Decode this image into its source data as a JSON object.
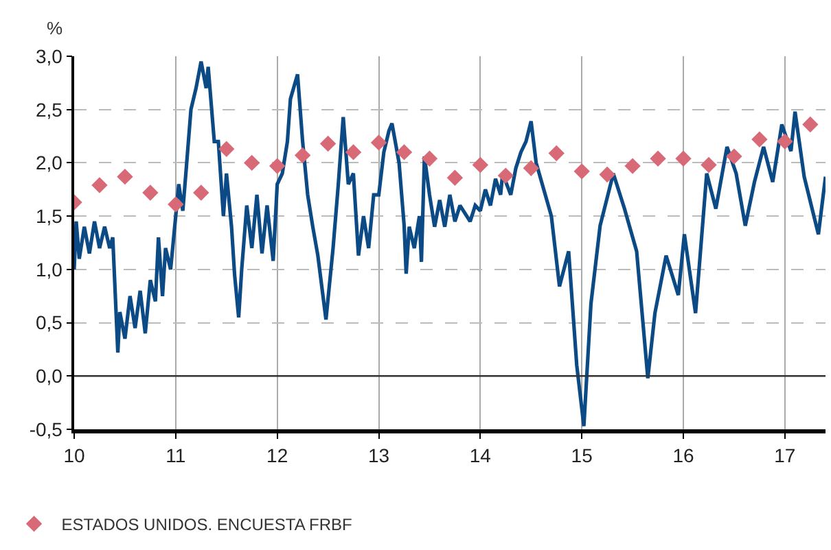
{
  "chart_data": {
    "type": "line",
    "ylabel": "%",
    "xlim": [
      10,
      17.4
    ],
    "xticks": [
      10,
      11,
      12,
      13,
      14,
      15,
      16,
      17
    ],
    "ylim": [
      -0.5,
      3.0
    ],
    "yticks": [
      {
        "value": -0.5,
        "label": "-0,5"
      },
      {
        "value": 0,
        "label": "0,0"
      },
      {
        "value": 0.5,
        "label": "0,5"
      },
      {
        "value": 1.0,
        "label": "1,0"
      },
      {
        "value": 1.5,
        "label": "1,5"
      },
      {
        "value": 2.0,
        "label": "2,0"
      },
      {
        "value": 2.5,
        "label": "2,5"
      },
      {
        "value": 3.0,
        "label": "3,0"
      }
    ],
    "grid": true,
    "legend": "bottom left",
    "ref_lines": [
      {
        "axis": "y",
        "value": 0,
        "color": "#333333"
      }
    ],
    "series": [
      {
        "color": "#0b4a85",
        "marker": "none",
        "line_style": "solid",
        "x": [
          10.0,
          10.02,
          10.05,
          10.1,
          10.15,
          10.2,
          10.25,
          10.3,
          10.35,
          10.38,
          10.43,
          10.45,
          10.5,
          10.55,
          10.6,
          10.65,
          10.7,
          10.75,
          10.8,
          10.83,
          10.87,
          10.9,
          10.95,
          11.0,
          11.03,
          11.07,
          11.1,
          11.15,
          11.2,
          11.25,
          11.3,
          11.32,
          11.38,
          11.42,
          11.47,
          11.5,
          11.55,
          11.58,
          11.62,
          11.65,
          11.7,
          11.75,
          11.8,
          11.85,
          11.9,
          11.96,
          12.0,
          12.05,
          12.1,
          12.13,
          12.2,
          12.25,
          12.3,
          12.35,
          12.4,
          12.48,
          12.55,
          12.6,
          12.65,
          12.7,
          12.75,
          12.8,
          12.85,
          12.9,
          12.95,
          13.0,
          13.05,
          13.1,
          13.13,
          13.2,
          13.25,
          13.27,
          13.3,
          13.35,
          13.4,
          13.42,
          13.45,
          13.5,
          13.55,
          13.6,
          13.65,
          13.7,
          13.75,
          13.8,
          13.9,
          13.95,
          14.0,
          14.05,
          14.1,
          14.15,
          14.2,
          14.22,
          14.3,
          14.35,
          14.4,
          14.45,
          14.5,
          14.55,
          14.64,
          14.7,
          14.78,
          14.87,
          14.95,
          15.02,
          15.09,
          15.18,
          15.31,
          15.42,
          15.54,
          15.65,
          15.72,
          15.83,
          15.95,
          16.01,
          16.12,
          16.23,
          16.32,
          16.43,
          16.52,
          16.61,
          16.7,
          16.79,
          16.88,
          16.97,
          17.06,
          17.1,
          17.19,
          17.33,
          17.4
        ],
        "values": [
          1.0,
          1.45,
          1.1,
          1.4,
          1.15,
          1.45,
          1.2,
          1.4,
          1.2,
          1.3,
          0.22,
          0.6,
          0.35,
          0.75,
          0.45,
          0.8,
          0.4,
          0.9,
          0.7,
          1.3,
          0.75,
          1.2,
          1.0,
          1.5,
          1.8,
          1.55,
          1.9,
          2.5,
          2.7,
          2.95,
          2.7,
          2.9,
          2.2,
          2.2,
          1.5,
          1.9,
          1.4,
          0.95,
          0.55,
          1.0,
          1.6,
          1.2,
          1.7,
          1.15,
          1.6,
          1.08,
          1.8,
          1.9,
          2.2,
          2.6,
          2.83,
          2.2,
          1.7,
          1.4,
          1.13,
          0.53,
          1.2,
          1.78,
          2.43,
          1.8,
          1.9,
          1.13,
          1.5,
          1.2,
          1.7,
          1.7,
          2.1,
          2.3,
          2.37,
          2.0,
          1.41,
          0.96,
          1.4,
          1.2,
          1.5,
          1.07,
          2.06,
          1.7,
          1.4,
          1.65,
          1.4,
          1.7,
          1.45,
          1.6,
          1.45,
          1.6,
          1.55,
          1.75,
          1.6,
          1.85,
          1.7,
          1.9,
          1.7,
          1.95,
          2.1,
          2.2,
          2.39,
          2.0,
          1.7,
          1.5,
          0.84,
          1.17,
          0.1,
          -0.47,
          0.68,
          1.41,
          1.9,
          1.57,
          1.17,
          -0.02,
          0.59,
          1.13,
          0.76,
          1.33,
          0.59,
          1.9,
          1.57,
          2.15,
          1.9,
          1.41,
          1.82,
          2.15,
          1.82,
          2.36,
          2.11,
          2.48,
          1.87,
          1.33,
          1.87
        ]
      },
      {
        "type": "scatter",
        "name": "ESTADOS UNIDOS. ENCUESTA FRBF",
        "color": "#d86a78",
        "marker": "diamond",
        "x": [
          10.0,
          10.25,
          10.5,
          10.75,
          11.0,
          11.25,
          11.5,
          11.75,
          12.0,
          12.25,
          12.5,
          12.75,
          13.0,
          13.25,
          13.5,
          13.75,
          14.0,
          14.25,
          14.5,
          14.75,
          15.0,
          15.25,
          15.5,
          15.75,
          16.0,
          16.25,
          16.5,
          16.75,
          17.0,
          17.25
        ],
        "values": [
          1.63,
          1.79,
          1.87,
          1.72,
          1.61,
          1.72,
          2.13,
          2.0,
          1.97,
          2.07,
          2.18,
          2.1,
          2.19,
          2.1,
          2.04,
          1.86,
          1.98,
          1.88,
          1.95,
          2.09,
          1.92,
          1.89,
          1.97,
          2.04,
          2.04,
          1.98,
          2.06,
          2.22,
          2.2,
          2.36
        ]
      }
    ]
  }
}
